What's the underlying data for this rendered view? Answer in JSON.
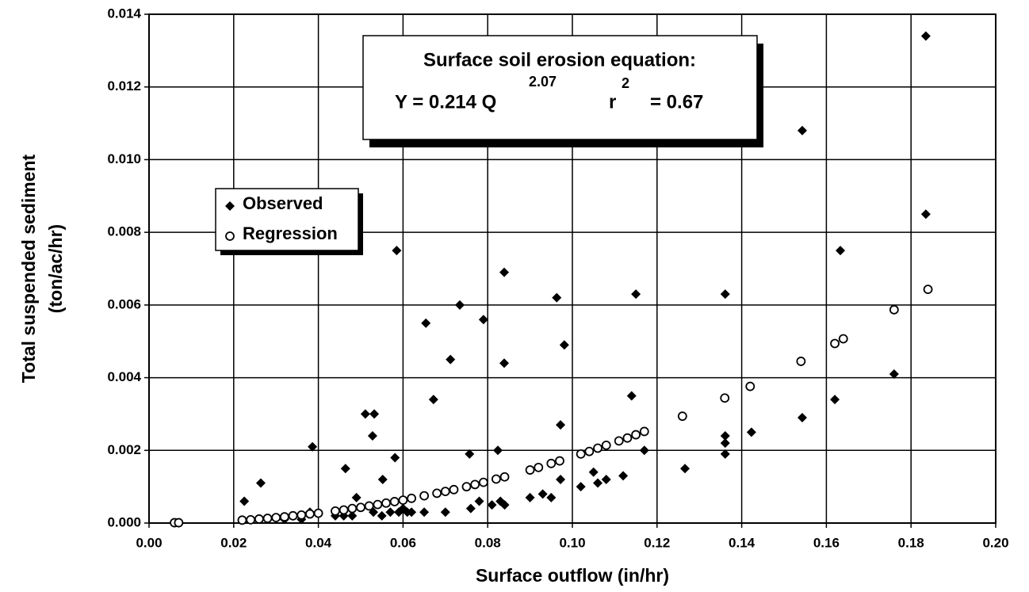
{
  "chart_data": {
    "type": "scatter",
    "xlabel": "Surface outflow (in/hr)",
    "ylabel": [
      "Total suspended sediment",
      "(ton/ac/hr)"
    ],
    "annotation": {
      "title": "Surface soil erosion equation:",
      "equation": "Y =  0.214 Q",
      "exponent": "2.07",
      "r": "r",
      "r_exponent": "2",
      "r_value": "= 0.67"
    },
    "xlim": [
      0,
      0.2
    ],
    "xticks": [
      {
        "value": 0,
        "label": "0.00"
      },
      0.02,
      0.04,
      0.06,
      0.08,
      {
        "value": 0.1,
        "label": "0.10"
      },
      0.12,
      0.14,
      0.16,
      0.18,
      {
        "value": 0.2,
        "label": "0.20"
      }
    ],
    "ylim": [
      0,
      0.014
    ],
    "yticks": [
      {
        "value": 0,
        "label": "0.000"
      },
      0.002,
      0.004,
      0.006,
      0.008,
      {
        "value": 0.01,
        "label": "0.010"
      },
      0.012,
      0.014
    ],
    "grid": true,
    "legend": "upper-left",
    "series": [
      {
        "name": "Observed",
        "marker": "diamond",
        "color": "#000000",
        "x": [
          0.0225,
          0.0264,
          0.0386,
          0.0464,
          0.0511,
          0.0532,
          0.0528,
          0.0552,
          0.0581,
          0.0585,
          0.0654,
          0.0672,
          0.0712,
          0.0734,
          0.0757,
          0.079,
          0.0824,
          0.0839,
          0.0839,
          0.0963,
          0.0981,
          0.0972,
          0.0972,
          0.114,
          0.115,
          0.117,
          0.1266,
          0.1361,
          0.1361,
          0.1361,
          0.1361,
          0.1423,
          0.1543,
          0.1543,
          0.162,
          0.1633,
          0.176,
          0.1835,
          0.1835,
          0.032,
          0.036,
          0.038,
          0.044,
          0.046,
          0.048,
          0.049,
          0.053,
          0.055,
          0.057,
          0.059,
          0.06,
          0.061,
          0.062,
          0.065,
          0.07,
          0.076,
          0.078,
          0.081,
          0.083,
          0.084,
          0.09,
          0.093,
          0.095,
          0.102,
          0.105,
          0.106,
          0.108,
          0.112
        ],
        "values": [
          0.0006,
          0.0011,
          0.0021,
          0.0015,
          0.003,
          0.003,
          0.0024,
          0.0012,
          0.0018,
          0.0075,
          0.0055,
          0.0034,
          0.0045,
          0.006,
          0.0019,
          0.0056,
          0.002,
          0.0069,
          0.0044,
          0.0062,
          0.0049,
          0.0027,
          0.0012,
          0.0035,
          0.0063,
          0.002,
          0.0015,
          0.0063,
          0.0024,
          0.0022,
          0.0019,
          0.0025,
          0.0108,
          0.0029,
          0.0034,
          0.0075,
          0.0041,
          0.0134,
          0.0085,
          0.0001,
          0.0001,
          0.0003,
          0.0002,
          0.0002,
          0.0002,
          0.0007,
          0.0003,
          0.0002,
          0.0003,
          0.0003,
          0.0004,
          0.0003,
          0.0003,
          0.0003,
          0.0003,
          0.0004,
          0.0006,
          0.0005,
          0.0006,
          0.0005,
          0.0007,
          0.0008,
          0.0007,
          0.001,
          0.0014,
          0.0011,
          0.0012,
          0.0013
        ]
      },
      {
        "name": "Regression",
        "marker": "circle",
        "color": "#000000",
        "x": [
          0.006,
          0.007,
          0.022,
          0.024,
          0.026,
          0.028,
          0.03,
          0.032,
          0.034,
          0.036,
          0.038,
          0.04,
          0.044,
          0.046,
          0.048,
          0.05,
          0.052,
          0.054,
          0.056,
          0.058,
          0.06,
          0.062,
          0.065,
          0.068,
          0.07,
          0.072,
          0.075,
          0.077,
          0.079,
          0.082,
          0.084,
          0.09,
          0.092,
          0.095,
          0.097,
          0.102,
          0.104,
          0.106,
          0.108,
          0.111,
          0.113,
          0.115,
          0.117,
          0.126,
          0.136,
          0.142,
          0.154,
          0.162,
          0.164,
          0.176,
          0.184
        ],
        "values": [
          1e-05,
          1e-05,
          8e-05,
          9e-05,
          0.00011,
          0.00013,
          0.00015,
          0.00017,
          0.0002,
          0.00022,
          0.00025,
          0.00027,
          0.00033,
          0.00036,
          0.0004,
          0.00043,
          0.00047,
          0.00051,
          0.00055,
          0.00059,
          0.00063,
          0.00068,
          0.00075,
          0.00082,
          0.00087,
          0.00092,
          0.001,
          0.00106,
          0.00112,
          0.00121,
          0.00127,
          0.00146,
          0.00153,
          0.00164,
          0.00171,
          0.0019,
          0.00197,
          0.00206,
          0.00214,
          0.00226,
          0.00234,
          0.00243,
          0.00252,
          0.00294,
          0.00344,
          0.00376,
          0.00445,
          0.00494,
          0.00507,
          0.00587,
          0.00643
        ]
      }
    ]
  }
}
